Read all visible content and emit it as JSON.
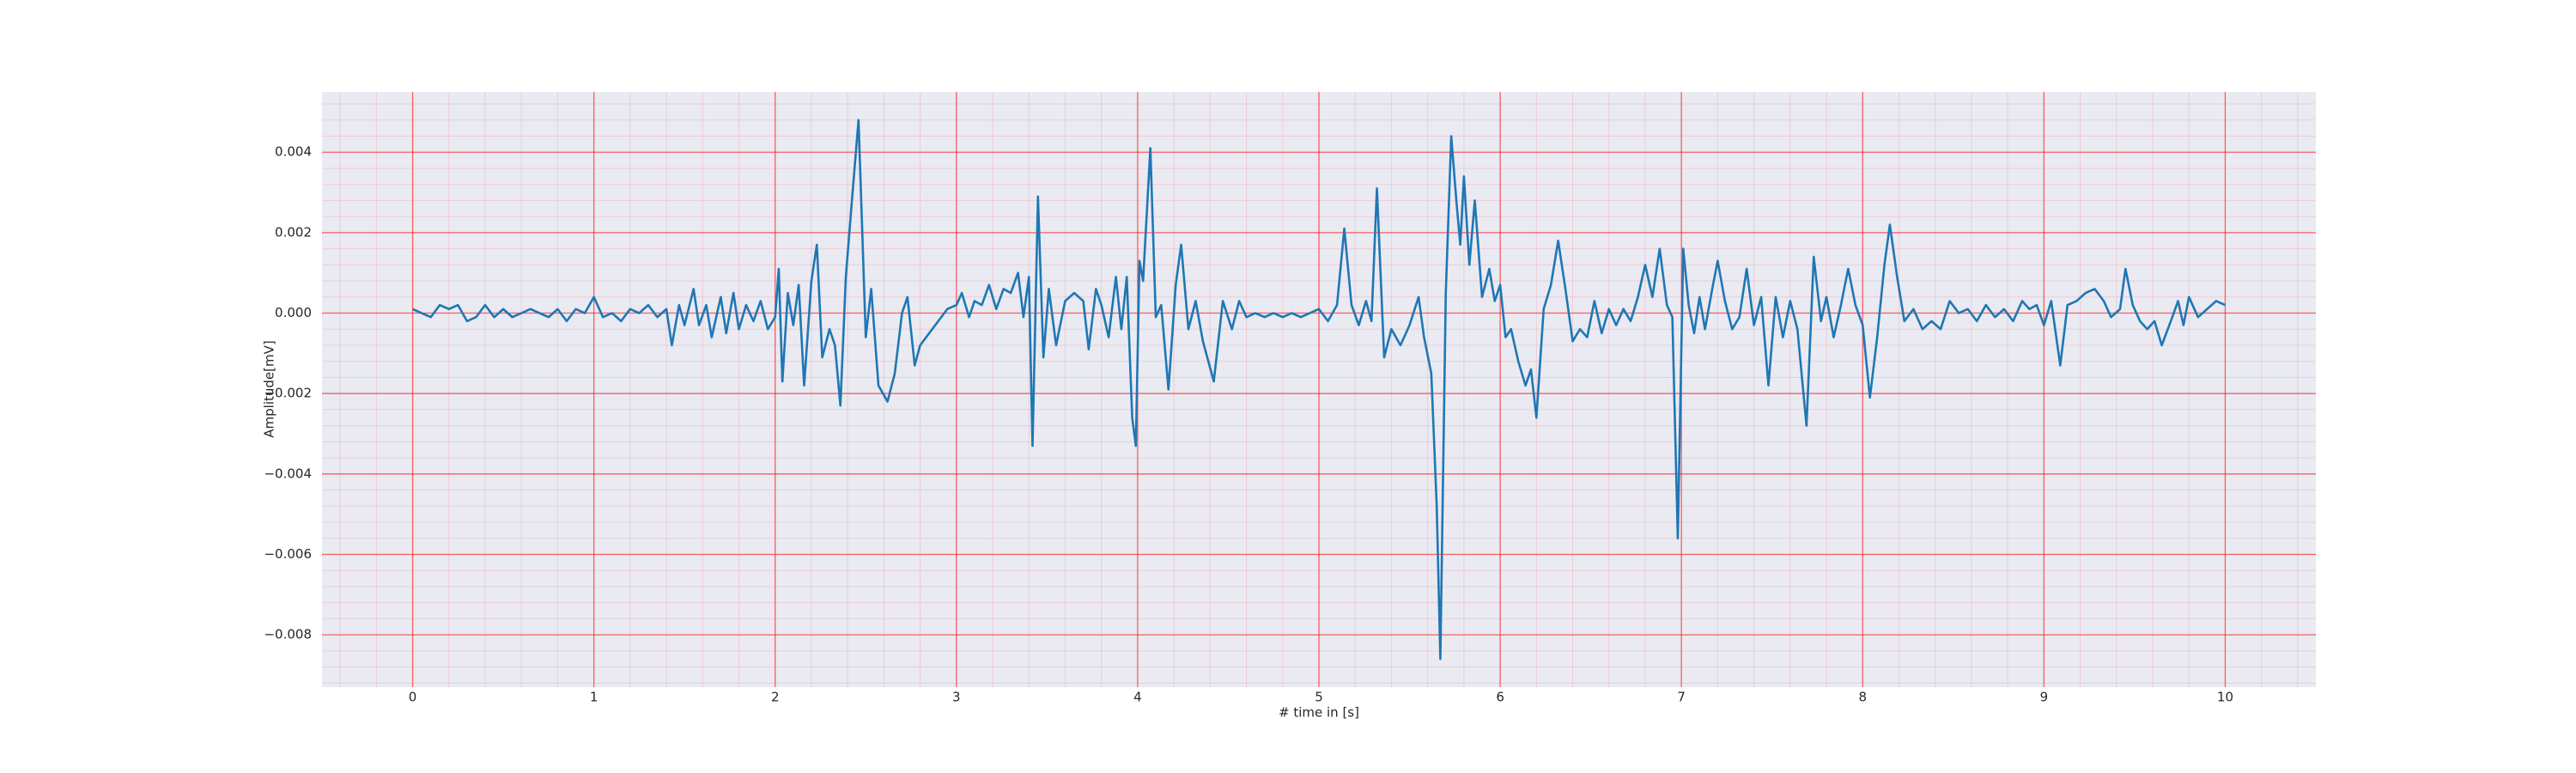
{
  "chart_data": {
    "type": "line",
    "xlabel": "# time in [s]",
    "ylabel": "Amplitude[mV]",
    "color": "#1f77b4",
    "background": "#eaeaf2",
    "grid": true,
    "minor_grid": true,
    "grid_color": "#ff0000",
    "xlim": [
      -0.5,
      10.5
    ],
    "ylim": [
      -0.0093,
      0.0055
    ],
    "xticks": [
      0,
      1,
      2,
      3,
      4,
      5,
      6,
      7,
      8,
      9,
      10
    ],
    "yticks": [
      {
        "value": -0.008,
        "label": "−0.008"
      },
      {
        "value": -0.006,
        "label": "−0.006"
      },
      {
        "value": -0.004,
        "label": "−0.004"
      },
      {
        "value": -0.002,
        "label": "−0.002"
      },
      {
        "value": 0,
        "label": "0.000"
      },
      {
        "value": 0.002,
        "label": "0.002"
      },
      {
        "value": 0.004,
        "label": "0.004"
      }
    ],
    "x": [
      0.0,
      0.05,
      0.1,
      0.15,
      0.2,
      0.25,
      0.3,
      0.35,
      0.4,
      0.45,
      0.5,
      0.55,
      0.6,
      0.65,
      0.7,
      0.75,
      0.8,
      0.85,
      0.9,
      0.95,
      1.0,
      1.05,
      1.1,
      1.15,
      1.2,
      1.25,
      1.3,
      1.35,
      1.4,
      1.43,
      1.47,
      1.5,
      1.55,
      1.58,
      1.62,
      1.65,
      1.7,
      1.73,
      1.77,
      1.8,
      1.84,
      1.88,
      1.92,
      1.96,
      2.0,
      2.02,
      2.04,
      2.07,
      2.1,
      2.13,
      2.16,
      2.2,
      2.23,
      2.26,
      2.3,
      2.33,
      2.36,
      2.39,
      2.42,
      2.46,
      2.5,
      2.53,
      2.57,
      2.62,
      2.66,
      2.7,
      2.73,
      2.77,
      2.8,
      2.85,
      2.9,
      2.95,
      3.0,
      3.03,
      3.07,
      3.1,
      3.14,
      3.18,
      3.22,
      3.26,
      3.3,
      3.34,
      3.37,
      3.4,
      3.42,
      3.45,
      3.48,
      3.51,
      3.55,
      3.6,
      3.65,
      3.7,
      3.73,
      3.77,
      3.8,
      3.84,
      3.88,
      3.91,
      3.94,
      3.97,
      3.99,
      4.01,
      4.03,
      4.07,
      4.1,
      4.13,
      4.17,
      4.21,
      4.24,
      4.28,
      4.32,
      4.36,
      4.42,
      4.47,
      4.52,
      4.56,
      4.6,
      4.65,
      4.7,
      4.75,
      4.8,
      4.85,
      4.9,
      4.95,
      5.0,
      5.05,
      5.1,
      5.14,
      5.18,
      5.22,
      5.26,
      5.29,
      5.32,
      5.36,
      5.4,
      5.45,
      5.5,
      5.55,
      5.58,
      5.62,
      5.65,
      5.67,
      5.7,
      5.73,
      5.76,
      5.78,
      5.8,
      5.83,
      5.86,
      5.9,
      5.94,
      5.97,
      6.0,
      6.03,
      6.06,
      6.1,
      6.14,
      6.17,
      6.2,
      6.24,
      6.28,
      6.32,
      6.36,
      6.4,
      6.44,
      6.48,
      6.52,
      6.56,
      6.6,
      6.64,
      6.68,
      6.72,
      6.76,
      6.8,
      6.84,
      6.88,
      6.92,
      6.95,
      6.98,
      7.01,
      7.04,
      7.07,
      7.1,
      7.13,
      7.17,
      7.2,
      7.24,
      7.28,
      7.32,
      7.36,
      7.4,
      7.44,
      7.48,
      7.52,
      7.56,
      7.6,
      7.64,
      7.69,
      7.73,
      7.77,
      7.8,
      7.84,
      7.88,
      7.92,
      7.96,
      8.0,
      8.04,
      8.08,
      8.12,
      8.15,
      8.19,
      8.23,
      8.28,
      8.33,
      8.38,
      8.43,
      8.48,
      8.53,
      8.58,
      8.63,
      8.68,
      8.73,
      8.78,
      8.83,
      8.88,
      8.92,
      8.96,
      9.0,
      9.04,
      9.09,
      9.13,
      9.18,
      9.23,
      9.28,
      9.33,
      9.37,
      9.42,
      9.45,
      9.49,
      9.53,
      9.57,
      9.61,
      9.65,
      9.7,
      9.74,
      9.77,
      9.8,
      9.85,
      9.9,
      9.95,
      10.0
    ],
    "values": [
      0.0001,
      0,
      -0.0001,
      0.0002,
      0.0001,
      0.0002,
      -0.0002,
      -0.0001,
      0.0002,
      -0.0001,
      0.0001,
      -0.0001,
      0,
      0.0001,
      0,
      -0.0001,
      0.0001,
      -0.0002,
      0.0001,
      0,
      0.0004,
      -0.0001,
      0,
      -0.0002,
      0.0001,
      0,
      0.0002,
      -0.0001,
      0.0001,
      -0.0008,
      0.0002,
      -0.0003,
      0.0006,
      -0.0003,
      0.0002,
      -0.0006,
      0.0004,
      -0.0005,
      0.0005,
      -0.0004,
      0.0002,
      -0.0002,
      0.0003,
      -0.0004,
      -0.0001,
      0.0011,
      -0.0017,
      0.0005,
      -0.0003,
      0.0007,
      -0.0018,
      0.0008,
      0.0017,
      -0.0011,
      -0.0004,
      -0.0008,
      -0.0023,
      0.0009,
      0.0026,
      0.0048,
      -0.0006,
      0.0006,
      -0.0018,
      -0.0022,
      -0.0015,
      0,
      0.0004,
      -0.0013,
      -0.0008,
      -0.0005,
      -0.0002,
      0.0001,
      0.0002,
      0.0005,
      -0.0001,
      0.0003,
      0.0002,
      0.0007,
      0.0001,
      0.0006,
      0.0005,
      0.001,
      -0.0001,
      0.0009,
      -0.0033,
      0.0029,
      -0.0011,
      0.0006,
      -0.0008,
      0.0003,
      0.0005,
      0.0003,
      -0.0009,
      0.0006,
      0.0002,
      -0.0006,
      0.0009,
      -0.0004,
      0.0009,
      -0.0026,
      -0.0033,
      0.0013,
      0.0008,
      0.0041,
      -0.0001,
      0.0002,
      -0.0019,
      0.0007,
      0.0017,
      -0.0004,
      0.0003,
      -0.0007,
      -0.0017,
      0.0003,
      -0.0004,
      0.0003,
      -0.0001,
      0,
      -0.0001,
      0,
      -0.0001,
      0,
      -0.0001,
      0,
      0.0001,
      -0.0002,
      0.0002,
      0.0021,
      0.0002,
      -0.0003,
      0.0003,
      -0.0002,
      0.0031,
      -0.0011,
      -0.0004,
      -0.0008,
      -0.0003,
      0.0004,
      -0.0006,
      -0.0015,
      -0.0048,
      -0.0086,
      0.0005,
      0.0044,
      0.0027,
      0.0017,
      0.0034,
      0.0012,
      0.0028,
      0.0004,
      0.0011,
      0.0003,
      0.0007,
      -0.0006,
      -0.0004,
      -0.0012,
      -0.0018,
      -0.0014,
      -0.0026,
      0.0001,
      0.0007,
      0.0018,
      0.0006,
      -0.0007,
      -0.0004,
      -0.0006,
      0.0003,
      -0.0005,
      0.0001,
      -0.0003,
      0.0001,
      -0.0002,
      0.0004,
      0.0012,
      0.0004,
      0.0016,
      0.0002,
      -0.0001,
      -0.0056,
      0.0016,
      0.0002,
      -0.0005,
      0.0004,
      -0.0004,
      0.0006,
      0.0013,
      0.0003,
      -0.0004,
      -0.0001,
      0.0011,
      -0.0003,
      0.0004,
      -0.0018,
      0.0004,
      -0.0006,
      0.0003,
      -0.0004,
      -0.0028,
      0.0014,
      -0.0002,
      0.0004,
      -0.0006,
      0.0002,
      0.0011,
      0.0002,
      -0.0003,
      -0.0021,
      -0.0006,
      0.0012,
      0.0022,
      0.0009,
      -0.0002,
      0.0001,
      -0.0004,
      -0.0002,
      -0.0004,
      0.0003,
      0,
      0.0001,
      -0.0002,
      0.0002,
      -0.0001,
      0.0001,
      -0.0002,
      0.0003,
      0.0001,
      0.0002,
      -0.0003,
      0.0003,
      -0.0013,
      0.0002,
      0.0003,
      0.0005,
      0.0006,
      0.0003,
      -0.0001,
      0.0001,
      0.0011,
      0.0002,
      -0.0002,
      -0.0004,
      -0.0002,
      -0.0008,
      -0.0002,
      0.0003,
      -0.0003,
      0.0004,
      -0.0001,
      0.0001,
      0.0003,
      0.0002
    ]
  }
}
